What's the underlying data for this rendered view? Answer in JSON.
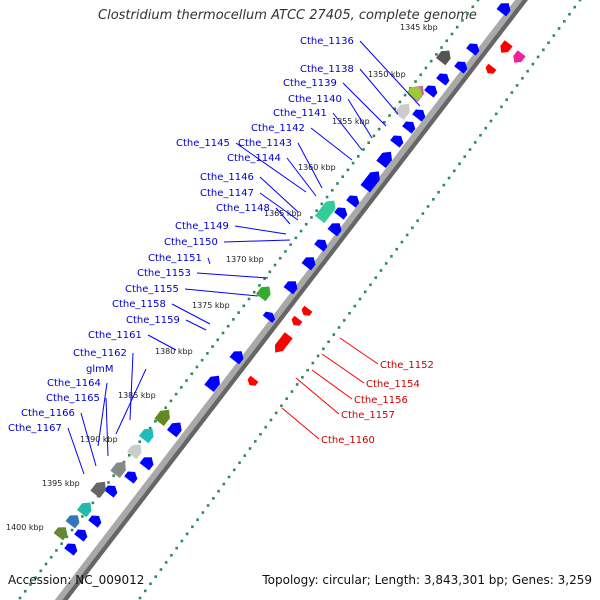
{
  "title": "Clostridium thermocellum ATCC 27405, complete genome",
  "footer": {
    "accession": "Accession: NC_009012",
    "summary": "Topology: circular; Length: 3,843,301 bp; Genes: 3,259"
  },
  "colors": {
    "backbone": "#a9a9a9",
    "forward_gene": "#0000ff",
    "reverse_gene": "#ff0000",
    "tick_dots": "#2e8b57",
    "forward_label": "#0000cc",
    "reverse_label": "#cc0000"
  },
  "kbp_ticks": [
    {
      "text": "1345 kbp"
    },
    {
      "text": "1350 kbp"
    },
    {
      "text": "1355 kbp"
    },
    {
      "text": "1360 kbp"
    },
    {
      "text": "1365 kbp"
    },
    {
      "text": "1370 kbp"
    },
    {
      "text": "1375 kbp"
    },
    {
      "text": "1380 kbp"
    },
    {
      "text": "1385 kbp"
    },
    {
      "text": "1390 kbp"
    },
    {
      "text": "1395 kbp"
    },
    {
      "text": "1400 kbp"
    }
  ],
  "forward_labels": [
    {
      "text": "Cthe_1136"
    },
    {
      "text": "Cthe_1138"
    },
    {
      "text": "Cthe_1139"
    },
    {
      "text": "Cthe_1140"
    },
    {
      "text": "Cthe_1141"
    },
    {
      "text": "Cthe_1142"
    },
    {
      "text": "Cthe_1145"
    },
    {
      "text": "Cthe_1143"
    },
    {
      "text": "Cthe_1144"
    },
    {
      "text": "Cthe_1146"
    },
    {
      "text": "Cthe_1147"
    },
    {
      "text": "Cthe_1148"
    },
    {
      "text": "Cthe_1149"
    },
    {
      "text": "Cthe_1150"
    },
    {
      "text": "Cthe_1151"
    },
    {
      "text": "Cthe_1153"
    },
    {
      "text": "Cthe_1155"
    },
    {
      "text": "Cthe_1158"
    },
    {
      "text": "Cthe_1159"
    },
    {
      "text": "Cthe_1161"
    },
    {
      "text": "Cthe_1162"
    },
    {
      "text": "glmM"
    },
    {
      "text": "Cthe_1164"
    },
    {
      "text": "Cthe_1165"
    },
    {
      "text": "Cthe_1166"
    },
    {
      "text": "Cthe_1167"
    }
  ],
  "reverse_labels": [
    {
      "text": "Cthe_1152"
    },
    {
      "text": "Cthe_1154"
    },
    {
      "text": "Cthe_1156"
    },
    {
      "text": "Cthe_1157"
    },
    {
      "text": "Cthe_1160"
    }
  ]
}
